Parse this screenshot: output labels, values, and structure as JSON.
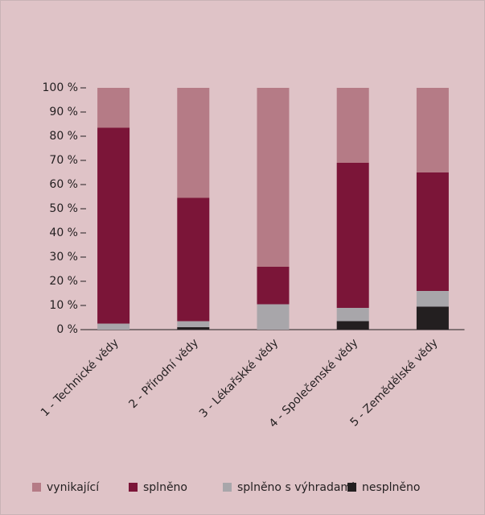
{
  "chart_data": {
    "type": "stacked_bar",
    "categories": [
      "1 - Technické vědy",
      "2 - Přírodní vědy",
      "3 - Lékařskké vědy",
      "4 - Společenské vědy",
      "5 - Zemědělské vědy"
    ],
    "series": [
      {
        "name": "nesplněno",
        "color": "#231f20",
        "values": [
          0,
          1,
          0,
          3.5,
          9.5
        ]
      },
      {
        "name": "splněno s výhradami",
        "color": "#a8a6aa",
        "values": [
          2.5,
          2.5,
          10.5,
          5.5,
          6.5
        ]
      },
      {
        "name": "splněno",
        "color": "#7b1538",
        "values": [
          81,
          51,
          15.5,
          60,
          49
        ]
      },
      {
        "name": "vynikající",
        "color": "#b57b86",
        "values": [
          16.5,
          45.5,
          74,
          31,
          35
        ]
      }
    ],
    "ylim": [
      0,
      100
    ],
    "yticks": [
      {
        "value": 0,
        "label": "0 %"
      },
      {
        "value": 10,
        "label": "10 %"
      },
      {
        "value": 20,
        "label": "20 %"
      },
      {
        "value": 30,
        "label": "30 %"
      },
      {
        "value": 40,
        "label": "40 %"
      },
      {
        "value": 50,
        "label": "50 %"
      },
      {
        "value": 60,
        "label": "60 %"
      },
      {
        "value": 70,
        "label": "70 %"
      },
      {
        "value": 80,
        "label": "80 %"
      },
      {
        "value": 90,
        "label": "90 %"
      },
      {
        "value": 100,
        "label": "100 %"
      }
    ],
    "legend": "bottom"
  }
}
